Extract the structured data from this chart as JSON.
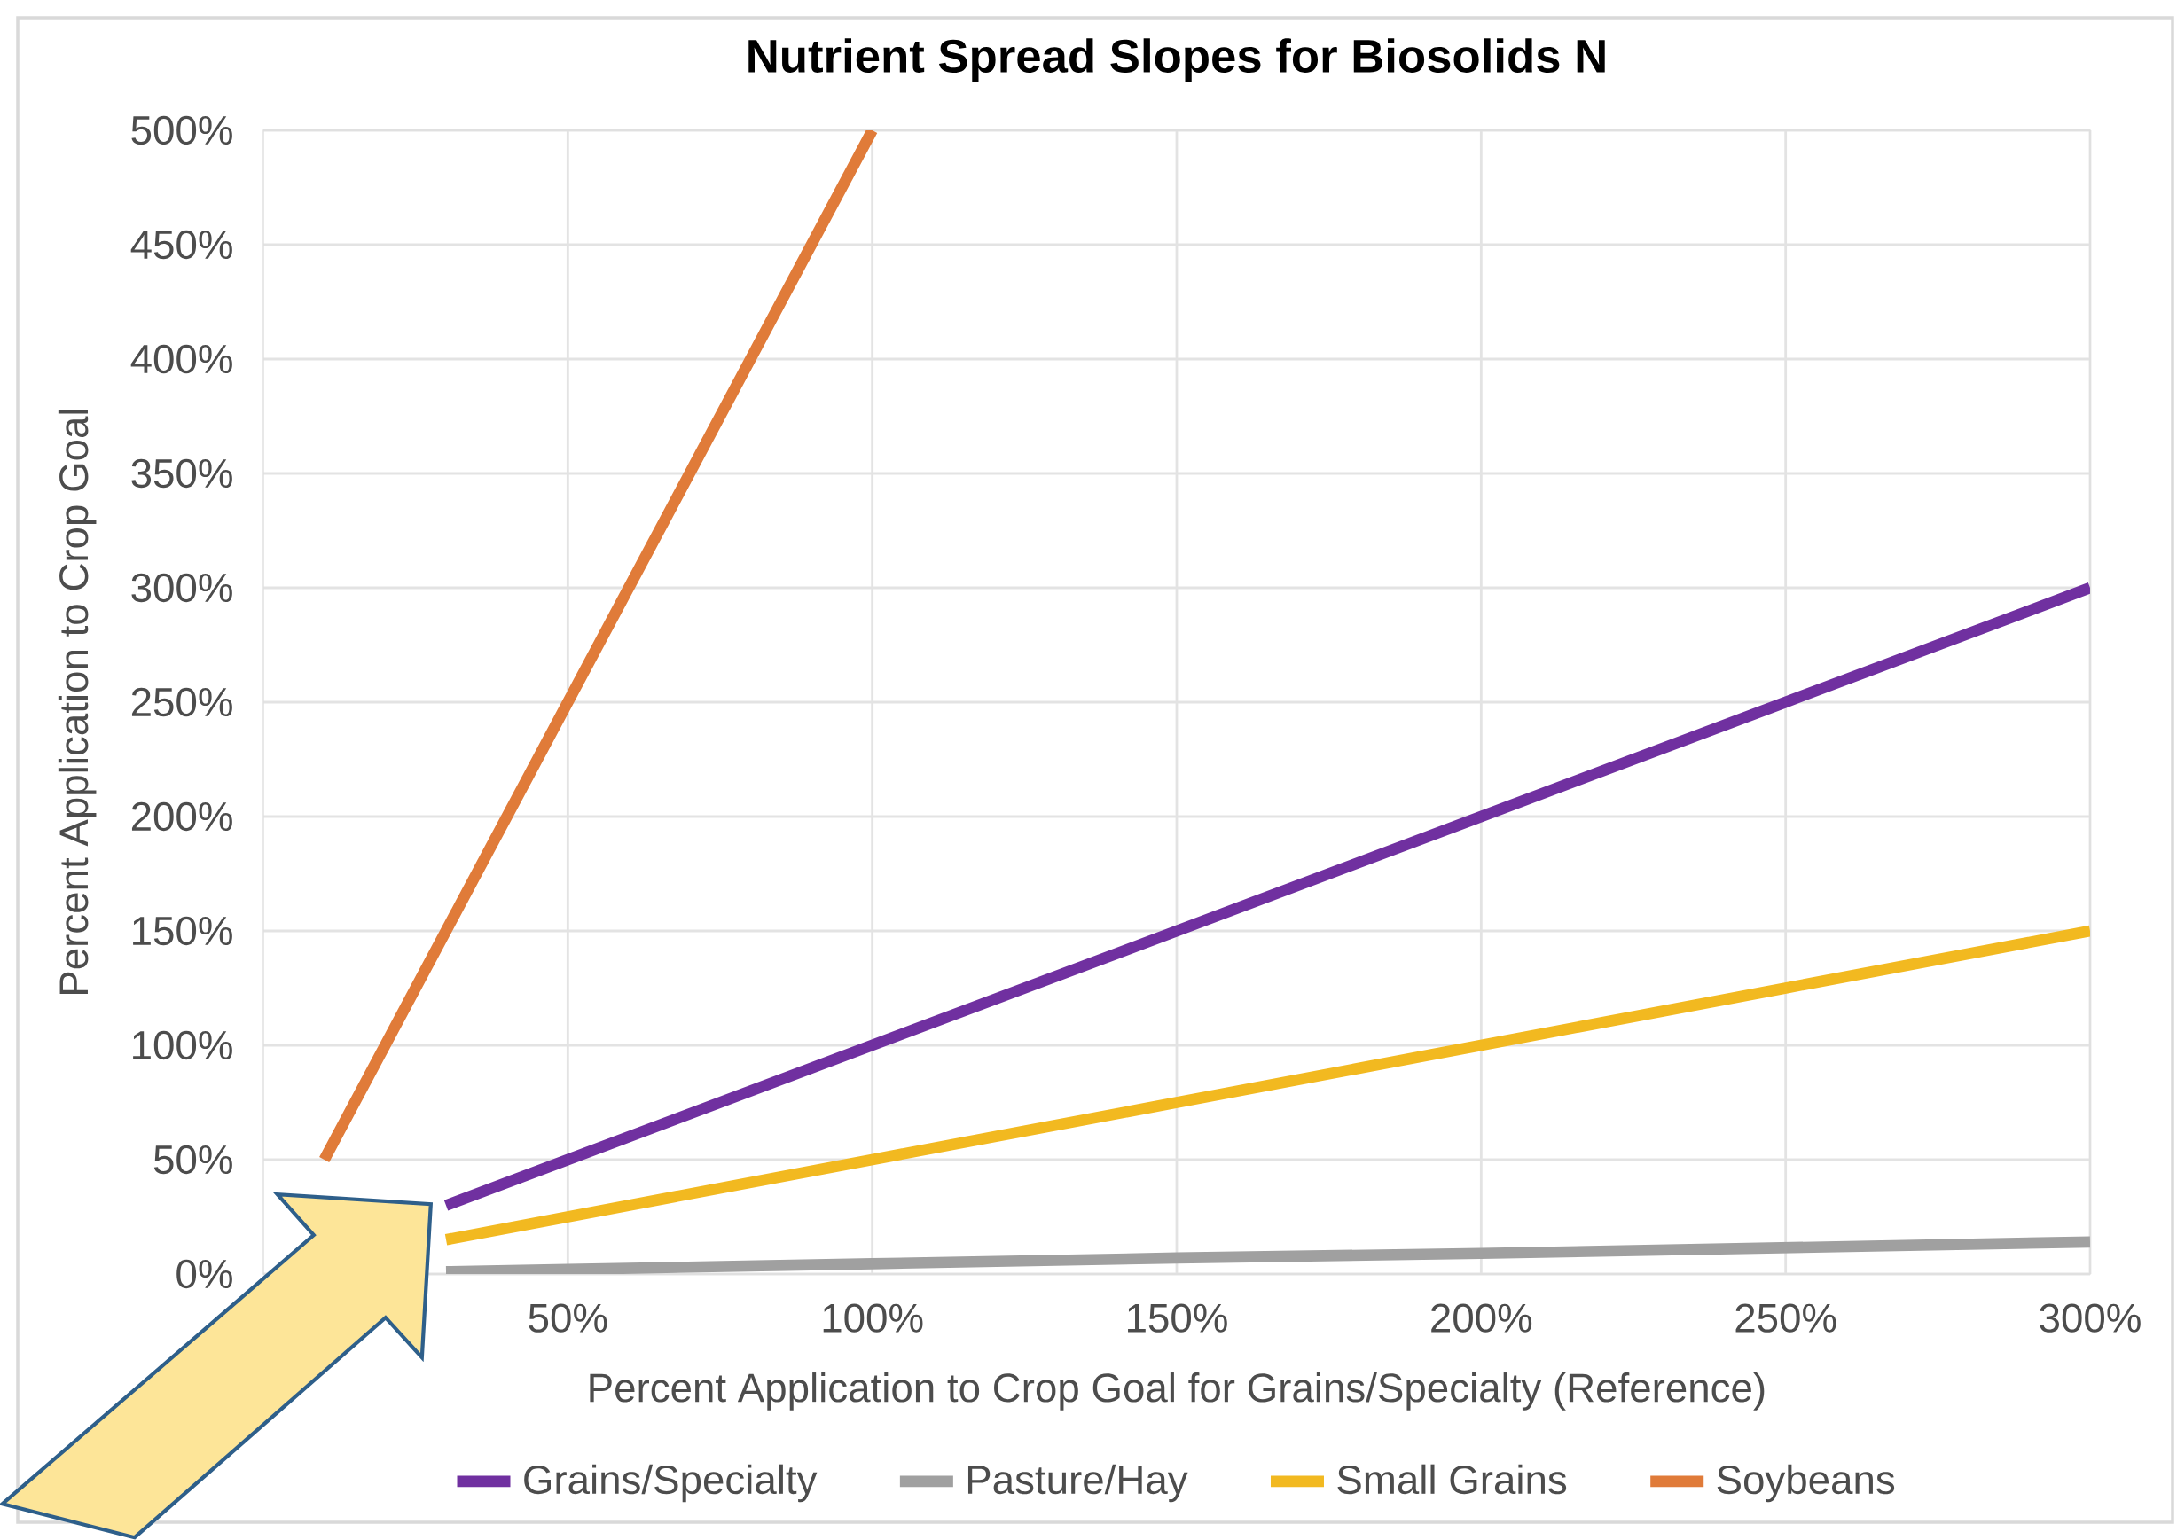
{
  "chart_data": {
    "type": "line",
    "title": "Nutrient Spread Slopes for Biosolids N",
    "xlabel": "Percent Application to Crop Goal for Grains/Specialty (Reference)",
    "ylabel": "Percent Application to Crop Goal",
    "xlim": [
      0,
      300
    ],
    "xticks": [
      {
        "value": 50,
        "label": "50%"
      },
      {
        "value": 100,
        "label": "100%"
      },
      {
        "value": 150,
        "label": "150%"
      },
      {
        "value": 200,
        "label": "200%"
      },
      {
        "value": 250,
        "label": "250%"
      },
      {
        "value": 300,
        "label": "300%"
      }
    ],
    "ylim": [
      0,
      500
    ],
    "yticks": [
      {
        "value": 0,
        "label": "0%"
      },
      {
        "value": 50,
        "label": "50%"
      },
      {
        "value": 100,
        "label": "100%"
      },
      {
        "value": 150,
        "label": "150%"
      },
      {
        "value": 200,
        "label": "200%"
      },
      {
        "value": 250,
        "label": "250%"
      },
      {
        "value": 300,
        "label": "300%"
      },
      {
        "value": 350,
        "label": "350%"
      },
      {
        "value": 400,
        "label": "400%"
      },
      {
        "value": 450,
        "label": "450%"
      },
      {
        "value": 500,
        "label": "500%"
      }
    ],
    "grid": true,
    "legend": "bottom",
    "series": [
      {
        "name": "Grains/Specialty",
        "color": "#7030a0",
        "x": [
          30,
          50,
          100,
          150,
          200,
          250,
          300
        ],
        "values": [
          30,
          50,
          100,
          150,
          200,
          250,
          300
        ]
      },
      {
        "name": "Pasture/Hay",
        "color": "#a0a0a0",
        "x": [
          30,
          50,
          100,
          150,
          200,
          250,
          300
        ],
        "values": [
          1,
          2,
          4.5,
          7,
          9,
          11.5,
          14
        ]
      },
      {
        "name": "Small Grains",
        "color": "#f2b920",
        "x": [
          30,
          50,
          100,
          150,
          200,
          250,
          300
        ],
        "values": [
          15,
          25,
          50,
          75,
          100,
          125,
          150
        ]
      },
      {
        "name": "Soybeans",
        "color": "#e07b39",
        "x": [
          10,
          50,
          100
        ],
        "values": [
          50,
          250,
          500
        ]
      }
    ]
  }
}
